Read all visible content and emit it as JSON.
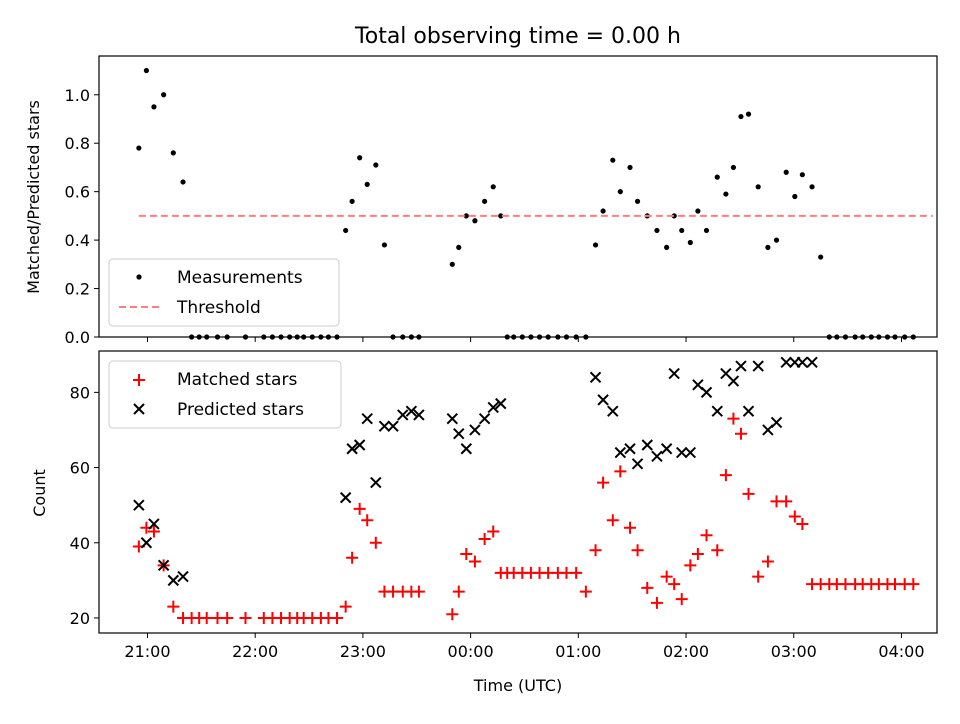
{
  "chart_data": [
    {
      "type": "scatter",
      "title": "Total observing time = 0.00 h",
      "ylabel": "Matched/Predicted stars",
      "xlabel": "",
      "xlim": [
        -0.45,
        7.33
      ],
      "ylim": [
        0,
        1.16
      ],
      "x_tick_values": [
        0,
        1,
        2,
        3,
        4,
        5,
        6,
        7
      ],
      "y_ticks": [
        "0.0",
        "0.2",
        "0.4",
        "0.6",
        "0.8",
        "1.0"
      ],
      "y_tick_values": [
        0.0,
        0.2,
        0.4,
        0.6,
        0.8,
        1.0
      ],
      "legend_position": "lower-left",
      "series": [
        {
          "name": "Measurements",
          "kind": "scatter",
          "color": "#000000",
          "x": [
            -0.08,
            -0.01,
            0.06,
            0.15,
            0.24,
            0.33,
            0.41,
            0.48,
            0.55,
            0.65,
            0.74,
            0.91,
            1.08,
            1.16,
            1.24,
            1.32,
            1.39,
            1.45,
            1.53,
            1.61,
            1.68,
            1.76,
            1.84,
            1.9,
            1.97,
            2.04,
            2.12,
            2.2,
            2.28,
            2.37,
            2.45,
            2.52,
            2.83,
            2.89,
            2.96,
            3.04,
            3.13,
            3.21,
            3.28,
            3.34,
            3.4,
            3.48,
            3.56,
            3.64,
            3.72,
            3.81,
            3.89,
            3.98,
            4.07,
            4.16,
            4.23,
            4.32,
            4.39,
            4.48,
            4.55,
            4.64,
            4.73,
            4.82,
            4.89,
            4.96,
            5.04,
            5.11,
            5.19,
            5.29,
            5.37,
            5.44,
            5.51,
            5.58,
            5.67,
            5.76,
            5.84,
            5.93,
            6.01,
            6.08,
            6.17,
            6.25,
            6.33,
            6.4,
            6.48,
            6.57,
            6.64,
            6.72,
            6.79,
            6.87,
            6.94,
            7.03,
            7.11
          ],
          "y": [
            0.78,
            1.1,
            0.95,
            1.0,
            0.76,
            0.64,
            0.0,
            0.0,
            0.0,
            0.0,
            0.0,
            0.0,
            0.0,
            0.0,
            0.0,
            0.0,
            0.0,
            0.0,
            0.0,
            0.0,
            0.0,
            0.0,
            0.44,
            0.56,
            0.74,
            0.63,
            0.71,
            0.38,
            0.0,
            0.0,
            0.0,
            0.0,
            0.3,
            0.37,
            0.5,
            0.48,
            0.56,
            0.62,
            0.5,
            0.0,
            0.0,
            0.0,
            0.0,
            0.0,
            0.0,
            0.0,
            0.0,
            0.0,
            0.0,
            0.38,
            0.52,
            0.73,
            0.6,
            0.7,
            0.56,
            0.5,
            0.44,
            0.37,
            0.5,
            0.44,
            0.39,
            0.52,
            0.44,
            0.66,
            0.59,
            0.7,
            0.91,
            0.92,
            0.62,
            0.37,
            0.4,
            0.68,
            0.58,
            0.67,
            0.62,
            0.33,
            0.0,
            0.0,
            0.0,
            0.0,
            0.0,
            0.0,
            0.0,
            0.0,
            0.0,
            0.0,
            0.0
          ]
        },
        {
          "name": "Threshold",
          "kind": "dashed-line",
          "color": "#ff7f7f",
          "x": [
            -0.08,
            7.29
          ],
          "y": [
            0.5,
            0.5
          ]
        }
      ]
    },
    {
      "type": "scatter",
      "title": "",
      "xlabel": "Time (UTC)",
      "ylabel": "Count",
      "xlim": [
        -0.45,
        7.33
      ],
      "ylim": [
        16,
        91
      ],
      "x_ticks": [
        "21:00",
        "22:00",
        "23:00",
        "00:00",
        "01:00",
        "02:00",
        "03:00",
        "04:00"
      ],
      "x_tick_values": [
        0,
        1,
        2,
        3,
        4,
        5,
        6,
        7
      ],
      "y_ticks": [
        "20",
        "40",
        "60",
        "80"
      ],
      "y_tick_values": [
        20,
        40,
        60,
        80
      ],
      "legend_position": "upper-left",
      "series": [
        {
          "name": "Matched stars",
          "kind": "plus",
          "color": "#ff0000",
          "x": [
            -0.08,
            -0.01,
            0.06,
            0.15,
            0.24,
            0.33,
            0.41,
            0.48,
            0.55,
            0.65,
            0.74,
            0.91,
            1.08,
            1.16,
            1.24,
            1.32,
            1.39,
            1.45,
            1.53,
            1.61,
            1.68,
            1.76,
            1.84,
            1.9,
            1.97,
            2.04,
            2.12,
            2.2,
            2.28,
            2.37,
            2.45,
            2.52,
            2.83,
            2.89,
            2.96,
            3.04,
            3.13,
            3.21,
            3.28,
            3.34,
            3.4,
            3.48,
            3.56,
            3.64,
            3.72,
            3.81,
            3.89,
            3.98,
            4.07,
            4.16,
            4.23,
            4.32,
            4.39,
            4.48,
            4.55,
            4.64,
            4.73,
            4.82,
            4.89,
            4.96,
            5.04,
            5.11,
            5.19,
            5.29,
            5.37,
            5.44,
            5.51,
            5.58,
            5.67,
            5.76,
            5.84,
            5.93,
            6.01,
            6.08,
            6.17,
            6.25,
            6.33,
            6.4,
            6.48,
            6.57,
            6.64,
            6.72,
            6.79,
            6.87,
            6.94,
            7.03,
            7.11
          ],
          "y": [
            39,
            44,
            43,
            34,
            23,
            20,
            20,
            20,
            20,
            20,
            20,
            20,
            20,
            20,
            20,
            20,
            20,
            20,
            20,
            20,
            20,
            20,
            23,
            36,
            49,
            46,
            40,
            27,
            27,
            27,
            27,
            27,
            21,
            27,
            37,
            35,
            41,
            43,
            32,
            32,
            32,
            32,
            32,
            32,
            32,
            32,
            32,
            32,
            27,
            38,
            56,
            46,
            59,
            44,
            38,
            28,
            24,
            31,
            29,
            25,
            34,
            37,
            42,
            38,
            58,
            73,
            69,
            53,
            31,
            35,
            51,
            51,
            47,
            45,
            29,
            29,
            29,
            29,
            29,
            29,
            29,
            29,
            29,
            29,
            29,
            29,
            29
          ]
        },
        {
          "name": "Predicted stars",
          "kind": "x",
          "color": "#000000",
          "x": [
            -0.08,
            -0.01,
            0.06,
            0.15,
            0.24,
            0.33,
            1.84,
            1.9,
            1.97,
            2.04,
            2.12,
            2.2,
            2.28,
            2.37,
            2.45,
            2.52,
            2.83,
            2.89,
            2.96,
            3.04,
            3.13,
            3.21,
            3.28,
            4.16,
            4.23,
            4.32,
            4.39,
            4.48,
            4.55,
            4.64,
            4.73,
            4.82,
            4.89,
            4.96,
            5.04,
            5.11,
            5.19,
            5.29,
            5.37,
            5.44,
            5.51,
            5.58,
            5.67,
            5.76,
            5.84,
            5.93,
            6.01,
            6.08,
            6.17
          ],
          "y": [
            50,
            40,
            45,
            34,
            30,
            31,
            52,
            65,
            66,
            73,
            56,
            71,
            71,
            74,
            75,
            74,
            73,
            69,
            65,
            70,
            73,
            76,
            77,
            84,
            78,
            75,
            64,
            65,
            61,
            66,
            63,
            65,
            85,
            64,
            64,
            82,
            80,
            75,
            85,
            83,
            87,
            75,
            87,
            70,
            72,
            88,
            88,
            88,
            88
          ]
        }
      ]
    }
  ]
}
